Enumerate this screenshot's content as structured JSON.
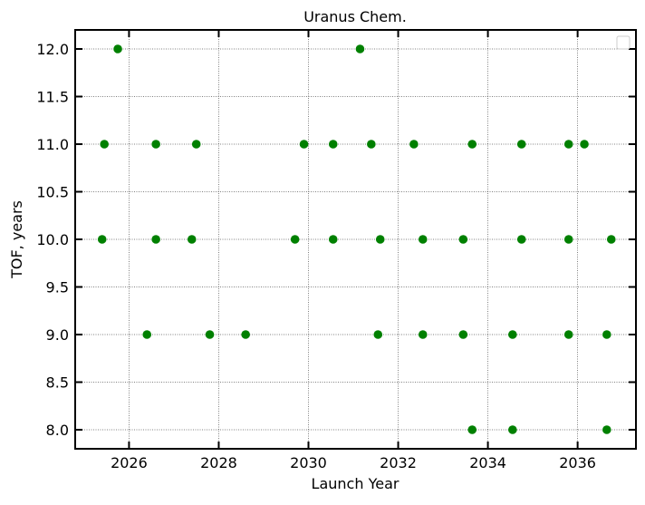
{
  "chart_data": {
    "type": "scatter",
    "title": "Uranus Chem.",
    "xlabel": "Launch Year",
    "ylabel": "TOF, years",
    "xlim": [
      2024.8,
      2037.3
    ],
    "ylim": [
      7.8,
      12.2
    ],
    "xticks": [
      "2026",
      "2028",
      "2030",
      "2032",
      "2034",
      "2036"
    ],
    "yticks": [
      "8.0",
      "8.5",
      "9.0",
      "9.5",
      "10.0",
      "10.5",
      "11.0",
      "11.5",
      "12.0"
    ],
    "grid": true,
    "legend": "top-right",
    "marker_color": "#008000",
    "series": [
      {
        "points": [
          [
            2025.75,
            12.0
          ],
          [
            2031.15,
            12.0
          ],
          [
            2025.45,
            11.0
          ],
          [
            2026.6,
            11.0
          ],
          [
            2027.5,
            11.0
          ],
          [
            2029.9,
            11.0
          ],
          [
            2030.55,
            11.0
          ],
          [
            2031.4,
            11.0
          ],
          [
            2032.35,
            11.0
          ],
          [
            2033.65,
            11.0
          ],
          [
            2034.75,
            11.0
          ],
          [
            2035.8,
            11.0
          ],
          [
            2036.15,
            11.0
          ],
          [
            2025.4,
            10.0
          ],
          [
            2026.6,
            10.0
          ],
          [
            2027.4,
            10.0
          ],
          [
            2029.7,
            10.0
          ],
          [
            2030.55,
            10.0
          ],
          [
            2031.6,
            10.0
          ],
          [
            2032.55,
            10.0
          ],
          [
            2033.45,
            10.0
          ],
          [
            2034.75,
            10.0
          ],
          [
            2035.8,
            10.0
          ],
          [
            2036.75,
            10.0
          ],
          [
            2026.4,
            9.0
          ],
          [
            2027.8,
            9.0
          ],
          [
            2028.6,
            9.0
          ],
          [
            2031.55,
            9.0
          ],
          [
            2032.55,
            9.0
          ],
          [
            2033.45,
            9.0
          ],
          [
            2034.55,
            9.0
          ],
          [
            2035.8,
            9.0
          ],
          [
            2036.65,
            9.0
          ],
          [
            2033.65,
            8.0
          ],
          [
            2034.55,
            8.0
          ],
          [
            2036.65,
            8.0
          ]
        ]
      }
    ]
  }
}
